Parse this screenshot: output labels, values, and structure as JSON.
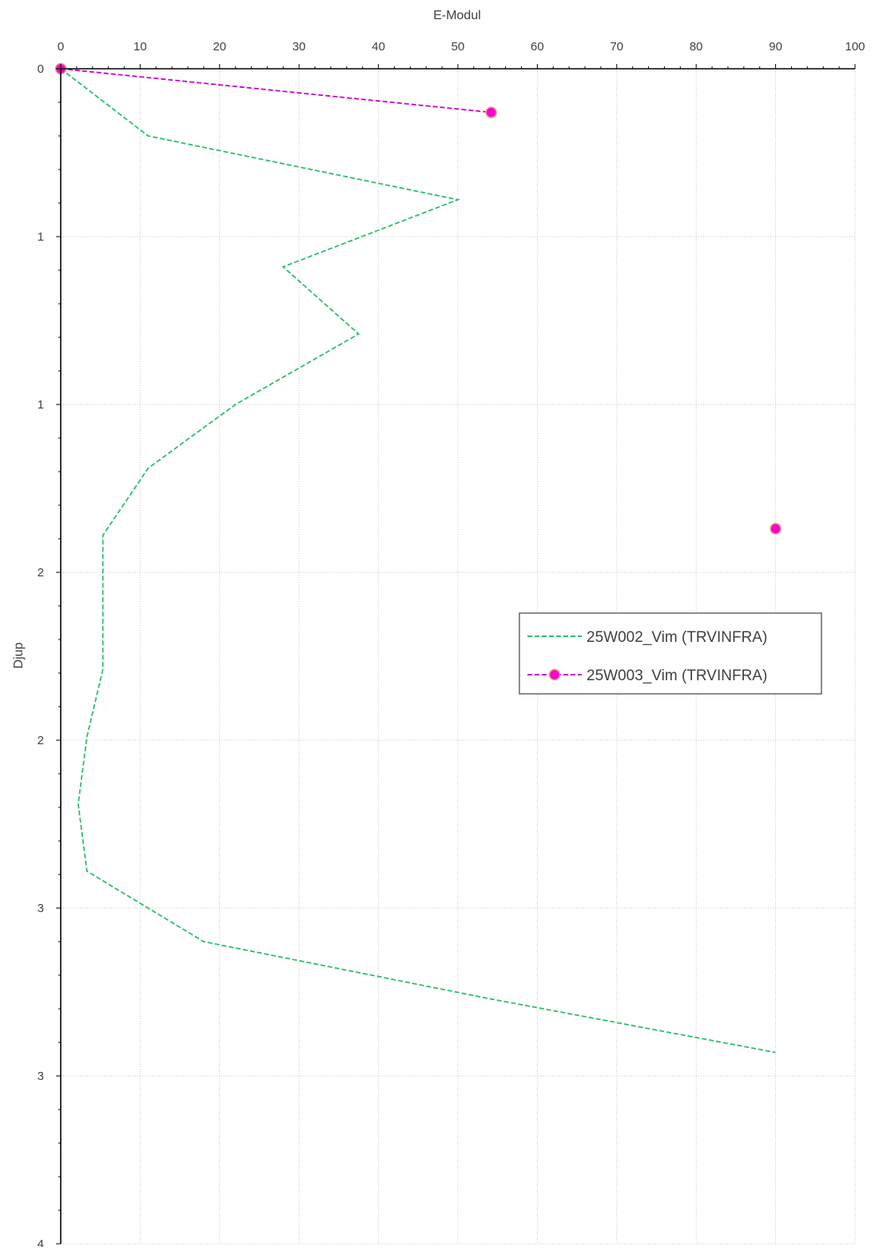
{
  "chart_data": {
    "type": "line",
    "title": "",
    "xlabel": "E-Modul",
    "ylabel": "Djup",
    "xlim": [
      0,
      100
    ],
    "ylim": [
      0,
      3.5
    ],
    "y_inverted": true,
    "x_axis_position": "top",
    "grid": true,
    "x_ticks": [
      0,
      10,
      20,
      30,
      40,
      50,
      60,
      70,
      80,
      90,
      100
    ],
    "x_tick_labels": [
      "0",
      "10",
      "20",
      "30",
      "40",
      "50",
      "60",
      "70",
      "80",
      "90",
      "100"
    ],
    "y_ticks": [
      0,
      0.5,
      1,
      1.5,
      2,
      2.5,
      3,
      3.5
    ],
    "y_tick_labels": [
      "0",
      "1",
      "1",
      "2",
      "2",
      "3",
      "3",
      "4"
    ],
    "legend_position": "right",
    "series": [
      {
        "name": "25W002_Vim (TRVINFRA)",
        "color": "#2DBE6C",
        "style": "dashed",
        "markers": false,
        "points": [
          {
            "x": 0,
            "y": 0
          },
          {
            "x": 11,
            "y": 0.2
          },
          {
            "x": 50,
            "y": 0.39
          },
          {
            "x": 28,
            "y": 0.59
          },
          {
            "x": 37.5,
            "y": 0.79
          },
          {
            "x": 22,
            "y": 1.0
          },
          {
            "x": 11,
            "y": 1.19
          },
          {
            "x": 5.3,
            "y": 1.39
          },
          {
            "x": 5.3,
            "y": 1.79
          },
          {
            "x": 3.3,
            "y": 1.99
          },
          {
            "x": 2.2,
            "y": 2.19
          },
          {
            "x": 3.3,
            "y": 2.39
          },
          {
            "x": 18,
            "y": 2.6
          },
          {
            "x": 54,
            "y": 2.77
          },
          {
            "x": 90,
            "y": 2.93
          }
        ]
      },
      {
        "name": "25W003_Vim (TRVINFRA)",
        "color": "#CC00CC",
        "marker_fill": "#FF00CC",
        "marker_edge": "#E8A080",
        "style": "dashed",
        "markers": true,
        "segments": [
          [
            {
              "x": 0,
              "y": 0
            },
            {
              "x": 54.2,
              "y": 0.13
            }
          ],
          [
            {
              "x": 90,
              "y": 1.37
            }
          ]
        ]
      }
    ]
  }
}
